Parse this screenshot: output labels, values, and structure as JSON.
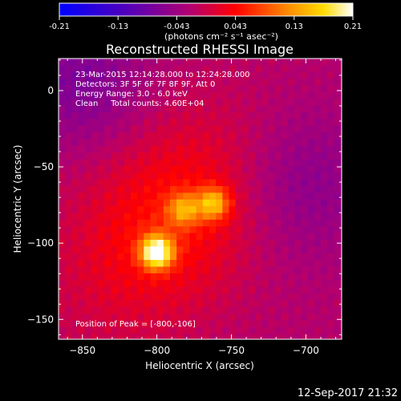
{
  "chart_data": {
    "type": "heatmap",
    "title": "Reconstructed RHESSI Image",
    "xlabel": "Heliocentric X (arcsec)",
    "ylabel": "Heliocentric Y (arcsec)",
    "xlim": [
      -866,
      -676
    ],
    "ylim": [
      -163,
      21
    ],
    "xticks": [
      -850,
      -800,
      -750,
      -700
    ],
    "yticks": [
      0,
      -50,
      -100,
      -150
    ],
    "colorbar": {
      "range": [
        -0.21,
        0.21
      ],
      "ticks": [
        "-0.21",
        "-0.13",
        "-0.043",
        "0.043",
        "0.13",
        "0.21"
      ],
      "unit_label": "(photons cm⁻² s⁻¹ asec⁻²)",
      "colormap": "blue-purple-red-yellow-white"
    },
    "info_lines": [
      "23-Mar-2015 12:14:28.000 to 12:24:28.000",
      "Detectors: 3F 5F 6F 7F 8F 9F, Att 0",
      "Energy Range: 3.0 - 6.0 keV",
      "Clean     Total counts: 4.60E+04"
    ],
    "peak_label": "Position of Peak = [-800,-106]",
    "peak": {
      "x": -800,
      "y": -106
    },
    "sources": [
      {
        "x": -800,
        "y": -106,
        "amplitude": 0.21
      },
      {
        "x": -762,
        "y": -74,
        "amplitude": 0.13
      },
      {
        "x": -782,
        "y": -78,
        "amplitude": 0.1
      }
    ],
    "timestamp": "12-Sep-2017 21:32"
  }
}
